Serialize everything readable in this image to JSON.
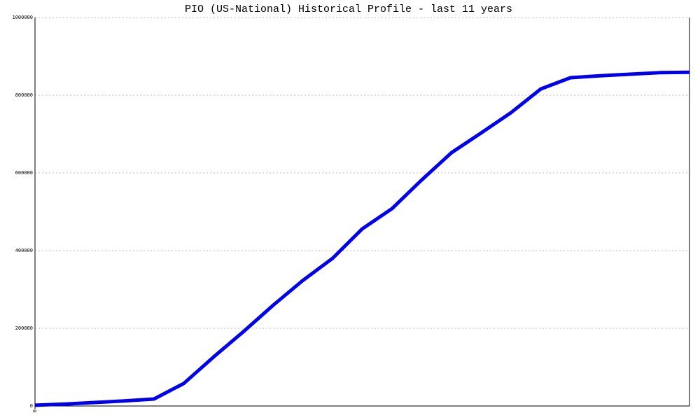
{
  "chart_data": {
    "type": "line",
    "title": "PIO (US-National) Historical Profile - last 11 years",
    "x": [
      0,
      1,
      2,
      3,
      4,
      5,
      6,
      7,
      8,
      9,
      10,
      11,
      12,
      13,
      14,
      15,
      16,
      17,
      18,
      19,
      20,
      21,
      22
    ],
    "series": [
      {
        "name": "PIO",
        "color": "#0000ee",
        "values": [
          2000,
          5000,
          9000,
          13000,
          18000,
          58000,
          126000,
          191000,
          259000,
          323000,
          380000,
          456000,
          508000,
          582000,
          652000,
          703000,
          755000,
          816000,
          845000,
          850000,
          854000,
          858000,
          859000
        ]
      }
    ],
    "xlim": [
      0,
      22
    ],
    "xticks": [
      0
    ],
    "ylim": [
      0,
      1000000
    ],
    "yticks": [
      0,
      200000,
      400000,
      600000,
      800000,
      1000000
    ],
    "grid": true
  }
}
